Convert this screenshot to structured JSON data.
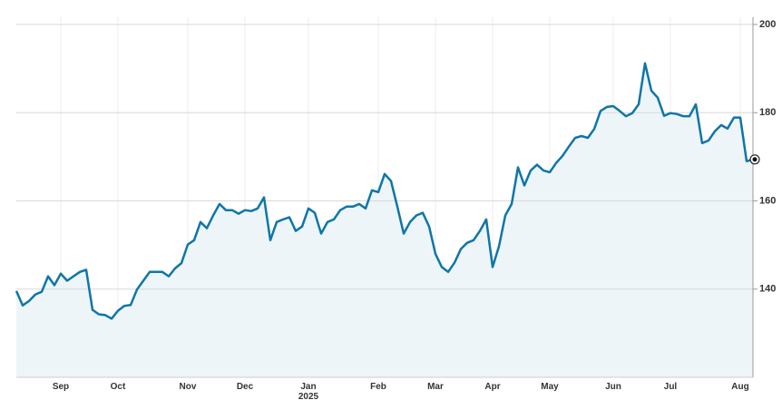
{
  "chart_data": {
    "type": "area",
    "categories": [
      null,
      null,
      null,
      null,
      null,
      null,
      null,
      "Sep",
      null,
      null,
      null,
      null,
      null,
      null,
      null,
      null,
      "Oct",
      null,
      null,
      null,
      null,
      null,
      null,
      null,
      null,
      null,
      null,
      "Nov",
      null,
      null,
      null,
      null,
      null,
      null,
      null,
      null,
      "Dec",
      null,
      null,
      null,
      null,
      null,
      null,
      null,
      null,
      null,
      "Jan\n2025",
      null,
      null,
      null,
      null,
      null,
      null,
      null,
      null,
      null,
      null,
      "Feb",
      null,
      null,
      null,
      null,
      null,
      null,
      null,
      null,
      "Mar",
      null,
      null,
      null,
      null,
      null,
      null,
      null,
      null,
      "Apr",
      null,
      null,
      null,
      null,
      null,
      null,
      null,
      null,
      "May",
      null,
      null,
      null,
      null,
      null,
      null,
      null,
      null,
      null,
      "Jun",
      null,
      null,
      null,
      null,
      null,
      null,
      null,
      null,
      "Jul",
      null,
      null,
      null,
      null,
      null,
      null,
      null,
      null,
      null,
      null,
      "Aug",
      null,
      null
    ],
    "values": [
      139.6,
      136.3,
      137.3,
      138.8,
      139.4,
      142.9,
      140.9,
      143.5,
      141.9,
      142.9,
      143.9,
      144.4,
      135.3,
      134.3,
      134.1,
      133.3,
      135.1,
      136.2,
      136.4,
      139.9,
      141.9,
      143.9,
      143.9,
      143.9,
      142.9,
      144.7,
      145.9,
      150.1,
      151.1,
      155.2,
      153.8,
      156.7,
      159.3,
      157.9,
      157.9,
      157.1,
      157.9,
      157.7,
      158.3,
      160.8,
      151.1,
      155.2,
      155.8,
      156.3,
      153.2,
      154.2,
      158.3,
      157.3,
      152.6,
      155.2,
      155.8,
      157.9,
      158.7,
      158.7,
      159.3,
      158.3,
      162.4,
      162.0,
      166.1,
      164.5,
      158.7,
      152.6,
      155.2,
      156.7,
      157.3,
      154.2,
      148.0,
      145.0,
      143.9,
      146.0,
      149.1,
      150.5,
      151.1,
      153.2,
      155.8,
      145.0,
      149.7,
      156.7,
      159.3,
      167.6,
      163.5,
      166.9,
      168.2,
      166.9,
      166.5,
      168.6,
      170.2,
      172.3,
      174.3,
      174.7,
      174.3,
      176.3,
      180.4,
      181.3,
      181.5,
      180.4,
      179.2,
      179.9,
      181.9,
      191.2,
      185.0,
      183.4,
      179.3,
      179.9,
      179.7,
      179.2,
      179.2,
      181.9,
      173.1,
      173.7,
      175.8,
      177.2,
      176.4,
      178.9,
      178.9,
      169.0,
      169.4
    ],
    "color": "#0e76a8",
    "area_color": "#eef5f9",
    "ylim": [
      120,
      200
    ],
    "yticks": [
      140,
      160,
      180,
      200
    ],
    "grid": true,
    "y_axis_side": "right"
  }
}
